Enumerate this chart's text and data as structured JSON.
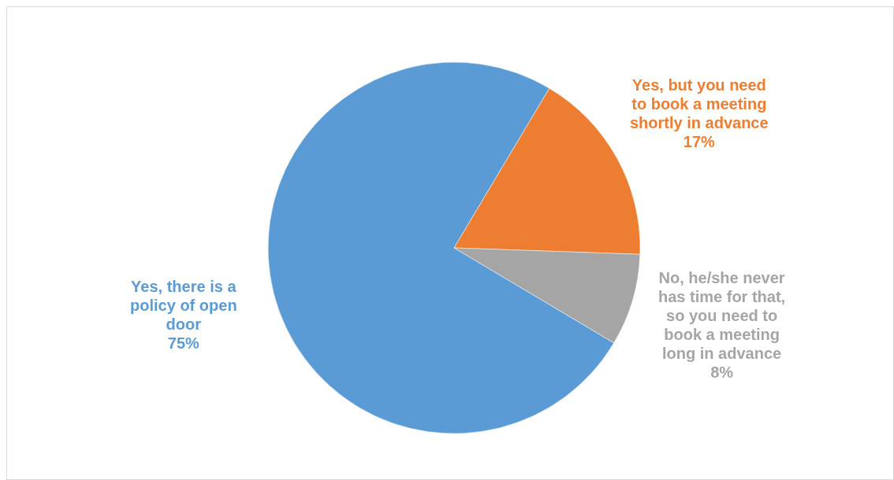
{
  "chart_data": {
    "type": "pie",
    "categories": [
      "Yes, there is a policy of open door",
      "Yes, but you need to book a meeting shortly in advance",
      "No, he/she never has time for that, so you need to book a meeting long in advance"
    ],
    "values": [
      75,
      17,
      8
    ],
    "colors": [
      "#5b9bd5",
      "#ed7d31",
      "#a5a5a5"
    ],
    "value_labels": [
      "75%",
      "17%",
      "8%"
    ]
  }
}
